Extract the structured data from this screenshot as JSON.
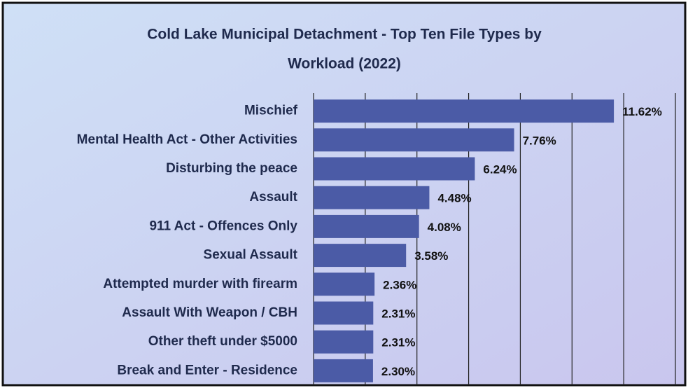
{
  "chart_data": {
    "type": "bar",
    "orientation": "horizontal",
    "title": [
      "Cold Lake Municipal Detachment - Top Ten File Types by",
      "Workload (2022)"
    ],
    "categories": [
      "Mischief",
      "Mental Health Act - Other Activities",
      "Disturbing the peace",
      "Assault",
      "911 Act - Offences Only",
      "Sexual Assault",
      "Attempted murder with firearm",
      "Assault With Weapon / CBH",
      "Other theft under $5000",
      "Break and Enter - Residence"
    ],
    "values": [
      11.62,
      7.76,
      6.24,
      4.48,
      4.08,
      3.58,
      2.36,
      2.31,
      2.31,
      2.3
    ],
    "value_labels": [
      "11.62%",
      "7.76%",
      "6.24%",
      "4.48%",
      "4.08%",
      "3.58%",
      "2.36%",
      "2.31%",
      "2.31%",
      "2.30%"
    ],
    "color": "#4b5ba6",
    "xlim": [
      0,
      14
    ],
    "xticks": [
      0,
      2,
      4,
      6,
      8,
      10,
      12,
      14
    ],
    "grid": true
  }
}
